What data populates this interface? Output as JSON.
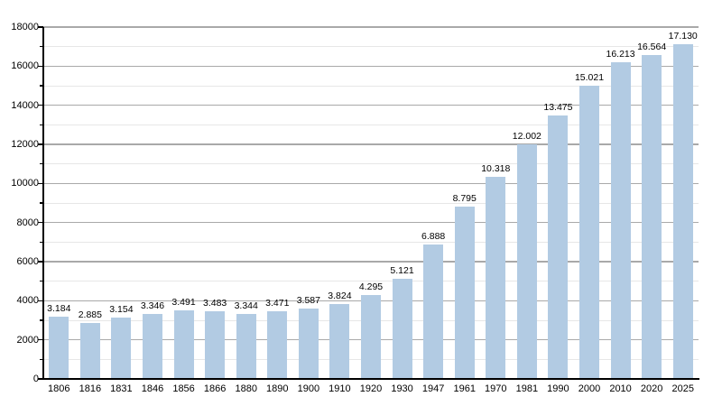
{
  "chart_data": {
    "type": "bar",
    "title": "",
    "xlabel": "",
    "ylabel": "",
    "categories": [
      "1806",
      "1816",
      "1831",
      "1846",
      "1856",
      "1866",
      "1880",
      "1890",
      "1900",
      "1910",
      "1920",
      "1930",
      "1947",
      "1961",
      "1970",
      "1981",
      "1990",
      "2000",
      "2010",
      "2020",
      "2025"
    ],
    "values": [
      3184,
      2885,
      3154,
      3346,
      3491,
      3483,
      3344,
      3471,
      3587,
      3824,
      4295,
      5121,
      6888,
      8795,
      10318,
      12002,
      13475,
      15021,
      16213,
      16564,
      17130
    ],
    "value_labels": [
      "3.184",
      "2.885",
      "3.154",
      "3.346",
      "3.491",
      "3.483",
      "3.344",
      "3.471",
      "3.587",
      "3.824",
      "4.295",
      "5.121",
      "6.888",
      "8.795",
      "10.318",
      "12.002",
      "13.475",
      "15.021",
      "16.213",
      "16.564",
      "17.130"
    ],
    "ylim": [
      0,
      18000
    ],
    "y_major_step": 2000,
    "y_minor_step": 1000,
    "y_tick_labels": [
      "0",
      "2000",
      "4000",
      "6000",
      "8000",
      "10000",
      "12000",
      "14000",
      "16000",
      "18000"
    ],
    "grid": true,
    "legend_position": "none",
    "colors": {
      "background": "#ffffff",
      "bar_fill": "#b2cbe3",
      "major_grid": "#a9a9a9",
      "minor_grid": "#e7e7e7",
      "axis": "#000000",
      "label_text": "#000000"
    }
  }
}
